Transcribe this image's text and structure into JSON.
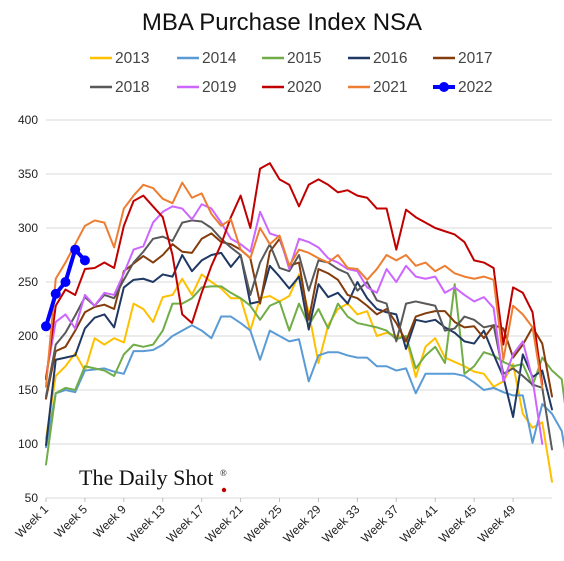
{
  "chart_data": {
    "type": "line",
    "title": "MBA Purchase Index NSA",
    "ylim": [
      50,
      400
    ],
    "yticks": [
      50,
      100,
      150,
      200,
      250,
      300,
      350,
      400
    ],
    "xticks": [
      {
        "week": 1,
        "label": "Week 1"
      },
      {
        "week": 5,
        "label": "Week 5"
      },
      {
        "week": 9,
        "label": "Week 9"
      },
      {
        "week": 13,
        "label": "Week 13"
      },
      {
        "week": 17,
        "label": "Week 17"
      },
      {
        "week": 21,
        "label": "Week 21"
      },
      {
        "week": 25,
        "label": "Week 25"
      },
      {
        "week": 29,
        "label": "Week 29"
      },
      {
        "week": 33,
        "label": "Week 33"
      },
      {
        "week": 37,
        "label": "Week 37"
      },
      {
        "week": 41,
        "label": "Week 41"
      },
      {
        "week": 45,
        "label": "Week 45"
      },
      {
        "week": 49,
        "label": "Week 49"
      }
    ],
    "legend_position": "top",
    "grid": "horizontal",
    "series": [
      {
        "name": "2013",
        "color": "#FFC000",
        "values": [
          105,
          163,
          172,
          184,
          168,
          198,
          192,
          198,
          194,
          230,
          225,
          213,
          236,
          238,
          253,
          238,
          257,
          250,
          244,
          235,
          235,
          205,
          235,
          237,
          232,
          237,
          257,
          222,
          175,
          210,
          225,
          230,
          220,
          223,
          200,
          203,
          200,
          199,
          162,
          190,
          198,
          180,
          176,
          172,
          167,
          165,
          153,
          158,
          174,
          128,
          115,
          120,
          65
        ]
      },
      {
        "name": "2014",
        "color": "#5B9BD5",
        "values": [
          97,
          147,
          150,
          148,
          168,
          169,
          170,
          167,
          165,
          186,
          186,
          187,
          192,
          200,
          205,
          210,
          205,
          198,
          218,
          218,
          212,
          205,
          178,
          205,
          200,
          195,
          197,
          158,
          182,
          185,
          185,
          182,
          180,
          180,
          172,
          172,
          168,
          170,
          147,
          165,
          165,
          165,
          165,
          163,
          157,
          150,
          152,
          148,
          145,
          145,
          101,
          137,
          128,
          112,
          61
        ]
      },
      {
        "name": "2015",
        "color": "#70AD47",
        "values": [
          81,
          147,
          152,
          150,
          172,
          170,
          168,
          163,
          183,
          192,
          190,
          192,
          205,
          230,
          230,
          235,
          245,
          246,
          246,
          240,
          235,
          228,
          215,
          228,
          232,
          205,
          230,
          210,
          225,
          207,
          230,
          218,
          212,
          210,
          208,
          205,
          197,
          200,
          170,
          182,
          190,
          175,
          248,
          165,
          172,
          185,
          182,
          176,
          172,
          174,
          154,
          180,
          168,
          160,
          90
        ]
      },
      {
        "name": "2016",
        "color": "#1F3864",
        "values": [
          99,
          178,
          180,
          182,
          207,
          217,
          220,
          208,
          245,
          252,
          253,
          250,
          257,
          255,
          275,
          260,
          270,
          275,
          277,
          264,
          275,
          230,
          232,
          265,
          255,
          244,
          255,
          206,
          248,
          236,
          240,
          230,
          250,
          235,
          225,
          222,
          220,
          188,
          215,
          213,
          215,
          208,
          203,
          195,
          193,
          205,
          183,
          162,
          125,
          183,
          162,
          168,
          132
        ]
      },
      {
        "name": "2017",
        "color": "#843C0C",
        "values": [
          142,
          186,
          190,
          205,
          222,
          227,
          229,
          225,
          260,
          267,
          274,
          268,
          275,
          285,
          278,
          277,
          290,
          295,
          287,
          285,
          280,
          272,
          230,
          278,
          290,
          265,
          268,
          215,
          262,
          258,
          252,
          238,
          235,
          228,
          220,
          225,
          212,
          195,
          218,
          221,
          223,
          223,
          213,
          208,
          209,
          198,
          210,
          207,
          180,
          192,
          208,
          193,
          144
        ]
      },
      {
        "name": "2018",
        "color": "#595959",
        "values": [
          144,
          192,
          203,
          219,
          236,
          228,
          238,
          235,
          252,
          268,
          278,
          290,
          292,
          288,
          305,
          307,
          306,
          300,
          290,
          282,
          275,
          238,
          268,
          285,
          263,
          260,
          275,
          242,
          270,
          268,
          262,
          258,
          242,
          250,
          233,
          230,
          195,
          230,
          232,
          230,
          228,
          205,
          207,
          218,
          215,
          208,
          210,
          165,
          170,
          163,
          155,
          152,
          95
        ]
      },
      {
        "name": "2019",
        "color": "#CC66FF",
        "values": [
          162,
          213,
          220,
          207,
          238,
          228,
          240,
          238,
          258,
          280,
          283,
          305,
          315,
          320,
          318,
          308,
          322,
          318,
          305,
          290,
          285,
          278,
          315,
          295,
          292,
          262,
          290,
          287,
          282,
          272,
          268,
          262,
          260,
          245,
          240,
          262,
          250,
          265,
          255,
          253,
          255,
          240,
          245,
          238,
          232,
          236,
          226,
          158,
          183,
          195,
          160,
          100
        ]
      },
      {
        "name": "2020",
        "color": "#C00000",
        "values": [
          160,
          228,
          243,
          238,
          262,
          263,
          268,
          263,
          302,
          325,
          330,
          320,
          310,
          275,
          220,
          212,
          240,
          265,
          285,
          310,
          330,
          300,
          355,
          360,
          345,
          340,
          320,
          340,
          345,
          340,
          333,
          335,
          330,
          328,
          318,
          318,
          280,
          317,
          310,
          305,
          300,
          297,
          294,
          287,
          270,
          268,
          263,
          192,
          245,
          240,
          222,
          155
        ]
      },
      {
        "name": "2021",
        "color": "#ED7D31",
        "values": [
          153,
          253,
          268,
          285,
          302,
          307,
          305,
          282,
          318,
          330,
          340,
          337,
          327,
          323,
          342,
          328,
          332,
          313,
          302,
          308,
          280,
          272,
          300,
          285,
          293,
          265,
          280,
          277,
          272,
          268,
          275,
          263,
          262,
          252,
          262,
          275,
          270,
          275,
          265,
          268,
          260,
          265,
          258,
          255,
          253,
          255,
          252,
          178,
          228,
          220,
          208,
          152
        ]
      },
      {
        "name": "2022",
        "color": "#0000FF",
        "highlight": true,
        "values": [
          209,
          239,
          250,
          280,
          270
        ]
      }
    ]
  },
  "branding": {
    "text": "The Daily Shot",
    "mark": "®"
  }
}
